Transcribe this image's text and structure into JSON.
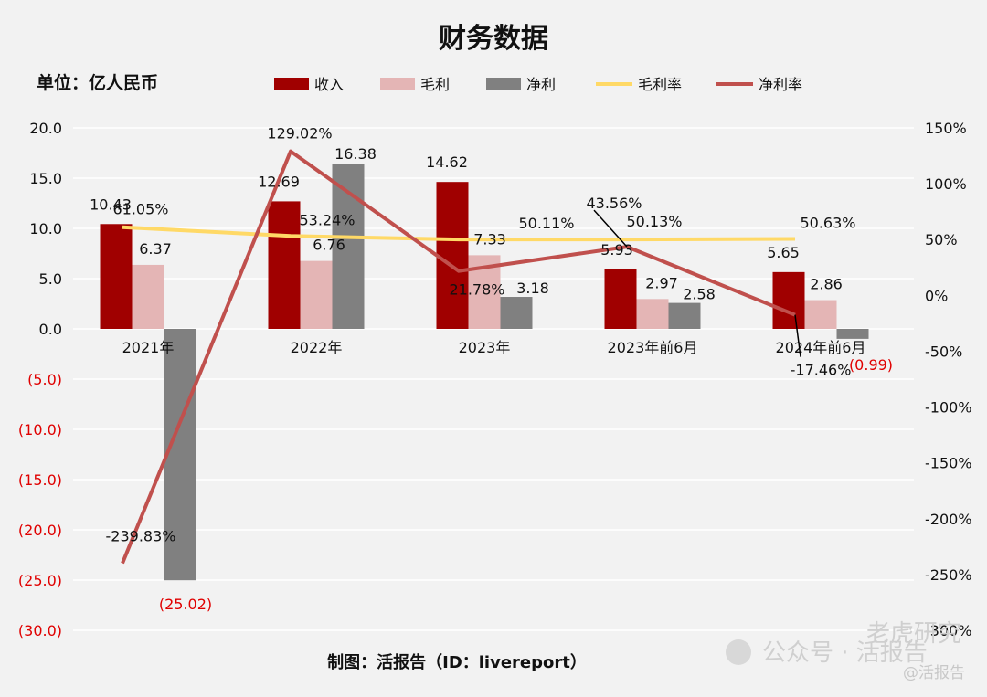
{
  "chart_data": {
    "type": "bar",
    "title": "财务数据",
    "unit_label": "单位：亿人民币",
    "categories": [
      "2021年",
      "2022年",
      "2023年",
      "2023年前6月",
      "2024年前6月"
    ],
    "y_left": {
      "ylim": [
        -30,
        20
      ],
      "ticks": [
        20,
        15,
        10,
        5,
        0,
        -5,
        -10,
        -15,
        -20,
        -25,
        -30
      ],
      "tick_labels": [
        "20.0",
        "15.0",
        "10.0",
        "5.0",
        "0.0",
        "(5.0)",
        "(10.0)",
        "(15.0)",
        "(20.0)",
        "(25.0)",
        "(30.0)"
      ]
    },
    "y_right": {
      "ylim": [
        -300,
        150
      ],
      "ticks": [
        150,
        100,
        50,
        0,
        -50,
        -100,
        -150,
        -200,
        -250,
        -300
      ],
      "tick_labels": [
        "150%",
        "100%",
        "50%",
        "0%",
        "-50%",
        "-100%",
        "-150%",
        "-200%",
        "-250%",
        "-300%"
      ]
    },
    "bar_series": [
      {
        "name": "收入",
        "color": "#a00000",
        "values": [
          10.43,
          12.69,
          14.62,
          5.93,
          5.65
        ],
        "labels": [
          "10.43",
          "12.69",
          "14.62",
          "5.93",
          "5.65"
        ]
      },
      {
        "name": "毛利",
        "color": "#e4b5b5",
        "values": [
          6.37,
          6.76,
          7.33,
          2.97,
          2.86
        ],
        "labels": [
          "6.37",
          "6.76",
          "7.33",
          "2.97",
          "2.86"
        ]
      },
      {
        "name": "净利",
        "color": "#808080",
        "values": [
          -25.02,
          16.38,
          3.18,
          2.58,
          -0.99
        ],
        "labels": [
          "(25.02)",
          "16.38",
          "3.18",
          "2.58",
          "(0.99)"
        ]
      }
    ],
    "line_series": [
      {
        "name": "毛利率",
        "color": "#ffd966",
        "values": [
          61.05,
          53.24,
          50.11,
          50.13,
          50.63
        ],
        "labels": [
          "61.05%",
          "53.24%",
          "50.11%",
          "50.13%",
          "50.63%"
        ]
      },
      {
        "name": "净利率",
        "color": "#c0504d",
        "values": [
          -239.83,
          129.02,
          21.78,
          43.56,
          -17.46
        ],
        "labels": [
          "-239.83%",
          "129.02%",
          "21.78%",
          "43.56%",
          "-17.46%"
        ]
      }
    ],
    "grid": true,
    "legend_position": "top"
  },
  "footer": {
    "credit": "制图：活报告（ID：livereport）"
  },
  "watermark": {
    "text": "公众号 · 活报告",
    "text2": "老虎研究",
    "handle": "@活报告"
  }
}
